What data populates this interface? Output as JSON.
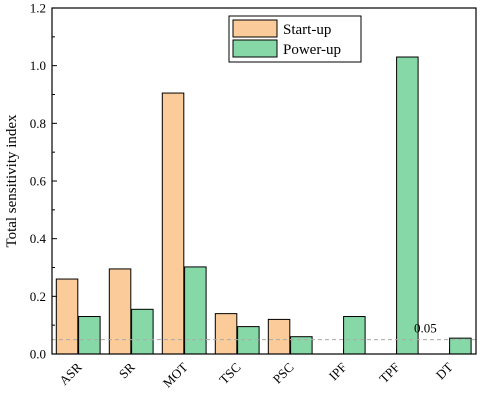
{
  "chart_data": {
    "type": "bar",
    "categories": [
      "ASR",
      "SR",
      "MOT",
      "TSC",
      "PSC",
      "IPF",
      "TPF",
      "DT"
    ],
    "series": [
      {
        "name": "Start-up",
        "color": "#FCCB9A",
        "values": [
          0.26,
          0.295,
          0.905,
          0.14,
          0.12,
          0.0,
          0.0,
          0.0
        ]
      },
      {
        "name": "Power-up",
        "color": "#86D8A6",
        "values": [
          0.13,
          0.155,
          0.302,
          0.095,
          0.06,
          0.13,
          1.03,
          0.055
        ]
      }
    ],
    "ylabel": "Total sensitivity index",
    "xlabel": "",
    "ylim": [
      0,
      1.2
    ],
    "yticks": [
      "0.0",
      "0.2",
      "0.4",
      "0.6",
      "0.8",
      "1.0",
      "1.2"
    ],
    "threshold": {
      "value": 0.05,
      "label": "0.05"
    },
    "legend_position": "top-center",
    "grid": false
  }
}
